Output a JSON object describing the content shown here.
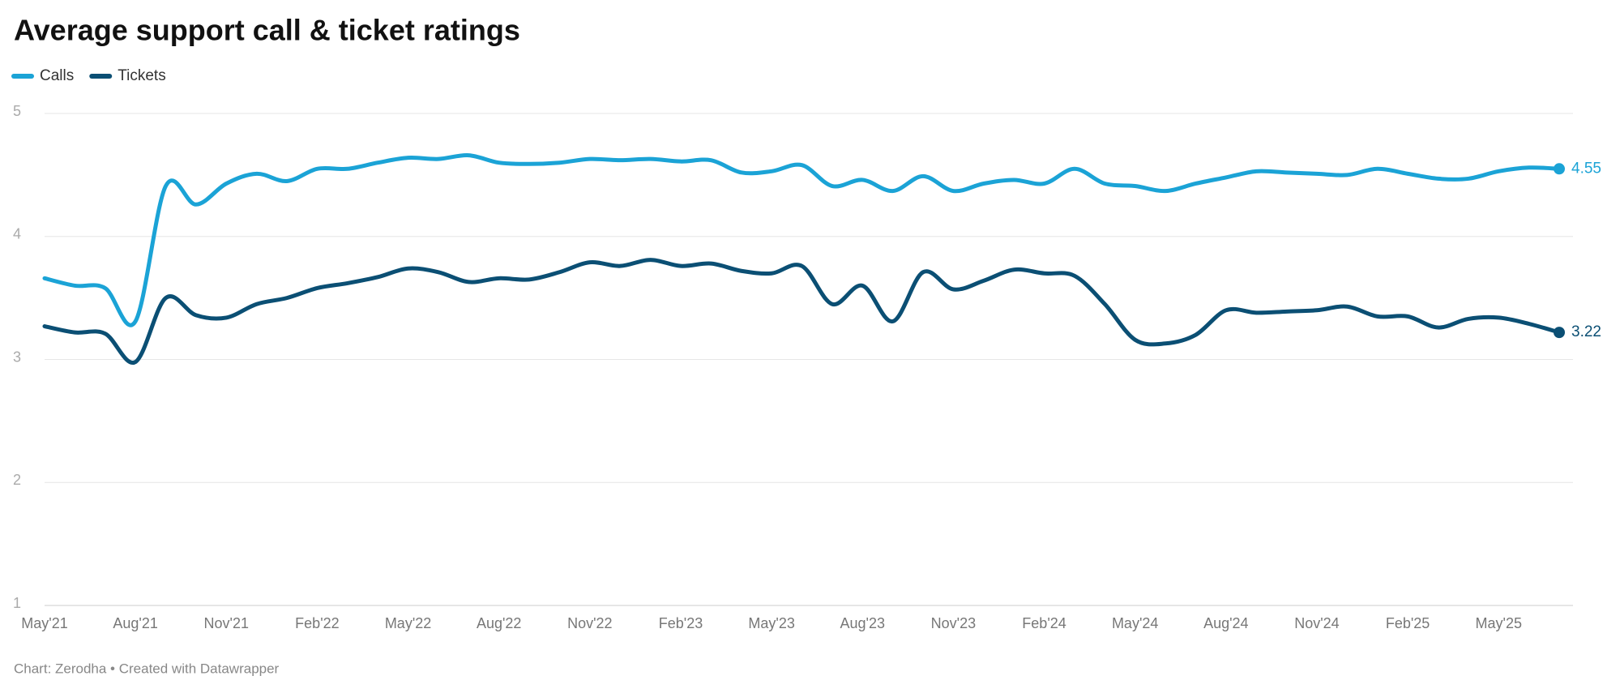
{
  "chart_data": {
    "type": "line",
    "title": "Average support call & ticket ratings",
    "source": "Chart: Zerodha • Created with Datawrapper",
    "categories": [
      "May'21",
      null,
      null,
      "Aug'21",
      null,
      null,
      "Nov'21",
      null,
      null,
      "Feb'22",
      null,
      null,
      "May'22",
      null,
      null,
      "Aug'22",
      null,
      null,
      "Nov'22",
      null,
      null,
      "Feb'23",
      null,
      null,
      "May'23",
      null,
      null,
      "Aug'23",
      null,
      null,
      "Nov'23",
      null,
      null,
      "Feb'24",
      null,
      null,
      "May'24",
      null,
      null,
      "Aug'24",
      null,
      null,
      "Nov'24",
      null,
      null,
      "Feb'25",
      null,
      null,
      "May'25",
      null,
      null
    ],
    "series": [
      {
        "name": "Calls",
        "color": "#1ba3d6",
        "values": [
          3.66,
          3.6,
          3.58,
          3.31,
          4.41,
          4.26,
          4.43,
          4.51,
          4.45,
          4.55,
          4.55,
          4.6,
          4.64,
          4.63,
          4.66,
          4.6,
          4.59,
          4.6,
          4.63,
          4.62,
          4.63,
          4.61,
          4.62,
          4.52,
          4.53,
          4.58,
          4.41,
          4.46,
          4.37,
          4.49,
          4.37,
          4.43,
          4.46,
          4.43,
          4.55,
          4.43,
          4.41,
          4.37,
          4.43,
          4.48,
          4.53,
          4.52,
          4.51,
          4.5,
          4.55,
          4.51,
          4.47,
          4.47,
          4.53,
          4.56,
          4.55
        ]
      },
      {
        "name": "Tickets",
        "color": "#0b4f74",
        "values": [
          3.27,
          3.22,
          3.21,
          2.98,
          3.5,
          3.36,
          3.34,
          3.45,
          3.5,
          3.58,
          3.62,
          3.67,
          3.74,
          3.71,
          3.63,
          3.66,
          3.65,
          3.71,
          3.79,
          3.76,
          3.81,
          3.76,
          3.78,
          3.72,
          3.7,
          3.76,
          3.45,
          3.6,
          3.31,
          3.71,
          3.57,
          3.64,
          3.73,
          3.7,
          3.68,
          3.45,
          3.16,
          3.13,
          3.2,
          3.4,
          3.38,
          3.39,
          3.4,
          3.43,
          3.35,
          3.35,
          3.26,
          3.33,
          3.34,
          3.29,
          3.22
        ]
      }
    ],
    "ylim": [
      1,
      5
    ],
    "yticks": [
      1,
      2,
      3,
      4,
      5
    ],
    "grid": true,
    "legend": "top-left"
  }
}
